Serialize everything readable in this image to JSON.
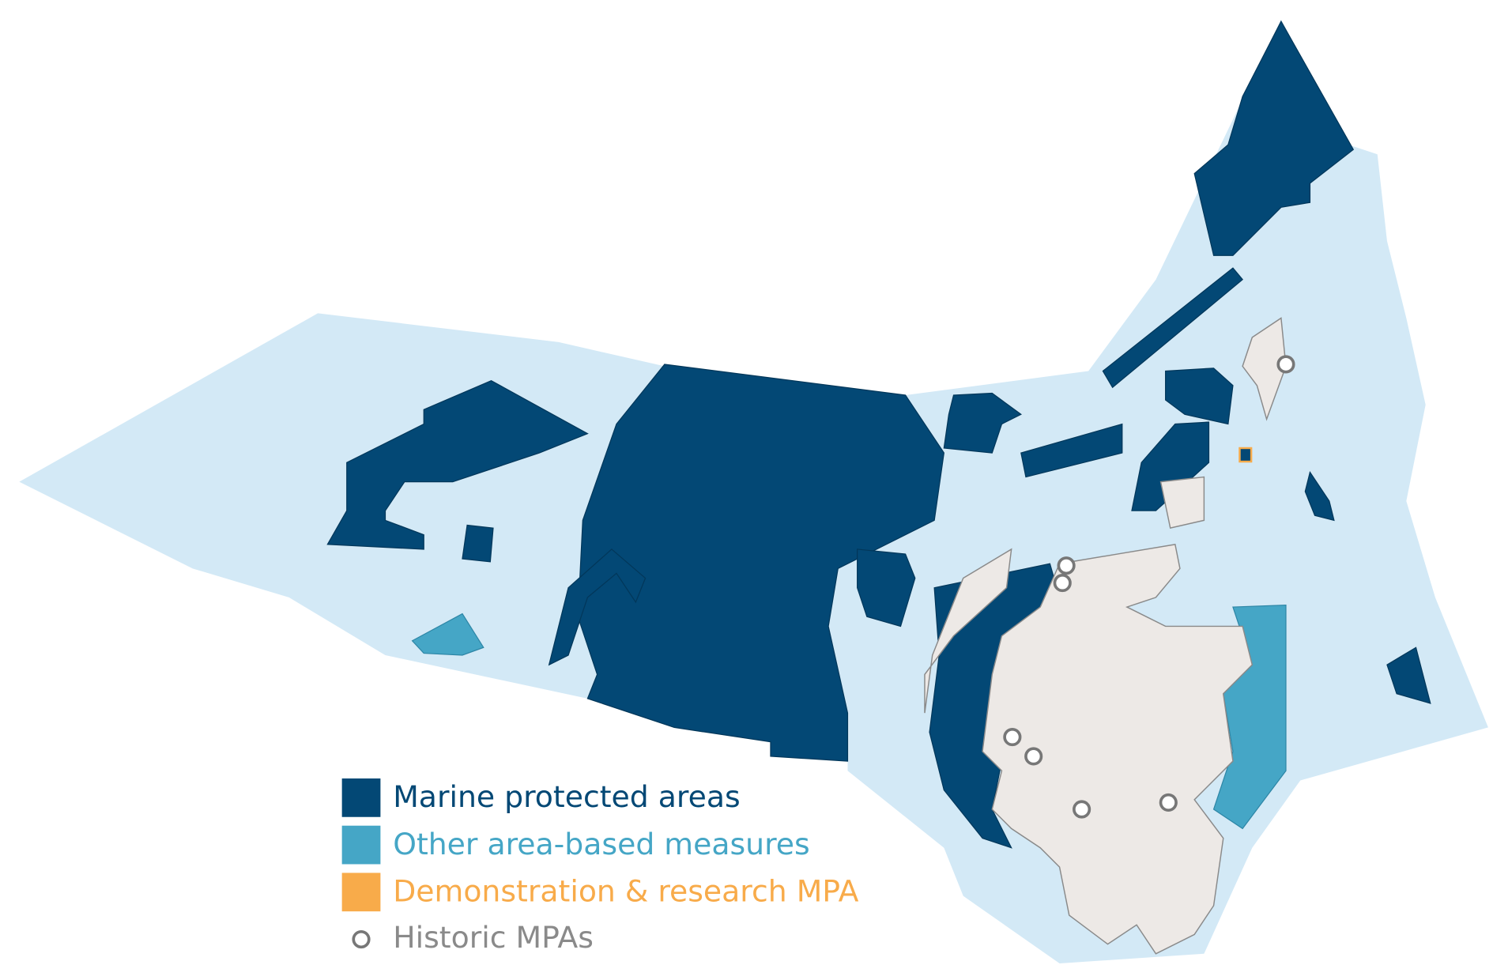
{
  "legend": {
    "items": [
      {
        "label": "Marine protected areas"
      },
      {
        "label": "Other area-based measures"
      },
      {
        "label": "Demonstration & research MPA"
      },
      {
        "label": "Historic MPAs"
      }
    ]
  }
}
